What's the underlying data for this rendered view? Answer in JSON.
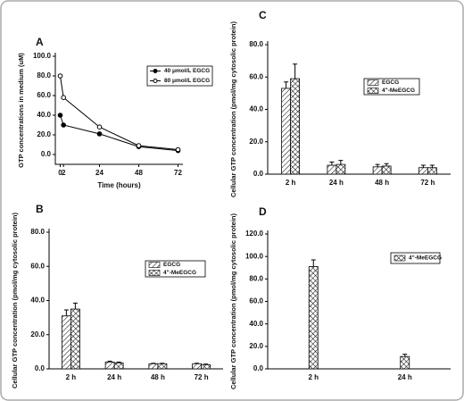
{
  "chart_data": [
    {
      "type": "line",
      "title": "A",
      "ylabel": "GTP concentrations in medium (uM)",
      "xlabel": "Time (hours)",
      "x": [
        0,
        2,
        24,
        48,
        72
      ],
      "series": [
        {
          "name": "40 μmol/L EGCG",
          "color": "#000000",
          "marker": "filled",
          "values": [
            40,
            30,
            21,
            8,
            4
          ]
        },
        {
          "name": "80 μmol/L EGCG",
          "color": "#000000",
          "marker": "open",
          "values": [
            80,
            58,
            28,
            9,
            5
          ]
        }
      ],
      "xlim": [
        -3,
        75
      ],
      "xticks": [
        0,
        2,
        24,
        48,
        72
      ],
      "ylim": [
        -10,
        100
      ],
      "yticks": [
        {
          "value": 0,
          "label": "0.0"
        },
        {
          "value": 20,
          "label": "20.0"
        },
        {
          "value": 40,
          "label": "40.0"
        },
        {
          "value": 60,
          "label": "60.0"
        },
        {
          "value": 80,
          "label": "80.0"
        },
        {
          "value": 100,
          "label": "100.0"
        }
      ]
    },
    {
      "type": "bar",
      "title": "C",
      "ylabel": "Cellular GTP concentration (pmol/mg cytosolic protein)",
      "categories": [
        "2 h",
        "24 h",
        "48 h",
        "72 h"
      ],
      "series": [
        {
          "name": "EGCG",
          "color": "#000000",
          "hatch": "diagonal",
          "values": [
            53,
            5.5,
            4.5,
            4
          ],
          "errors": [
            4,
            2,
            1.5,
            1.5
          ]
        },
        {
          "name": "4\"-MeEGCG",
          "color": "#000000",
          "hatch": "cross",
          "values": [
            59,
            6,
            5,
            4
          ],
          "errors": [
            9,
            2.5,
            1.5,
            1.5
          ]
        }
      ],
      "ylim": [
        0,
        80
      ],
      "yticks": [
        {
          "value": 0,
          "label": "0.0"
        },
        {
          "value": 20,
          "label": "20.0"
        },
        {
          "value": 40,
          "label": "40.0"
        },
        {
          "value": 60,
          "label": "60.0"
        },
        {
          "value": 80,
          "label": "80.0"
        }
      ]
    },
    {
      "type": "bar",
      "title": "B",
      "ylabel": "Cellular GTP concentration (pmol/mg cytosolic protein)",
      "categories": [
        "2 h",
        "24 h",
        "48 h",
        "72 h"
      ],
      "series": [
        {
          "name": "EGCG",
          "color": "#000000",
          "hatch": "diagonal",
          "values": [
            31,
            4,
            3,
            3
          ],
          "errors": [
            3.5,
            0.5,
            0.3,
            0.3
          ]
        },
        {
          "name": "4\"-MeEGCG",
          "color": "#000000",
          "hatch": "cross",
          "values": [
            35,
            3.5,
            3,
            2.5
          ],
          "errors": [
            3.5,
            0.5,
            0.3,
            0.3
          ]
        }
      ],
      "ylim": [
        0,
        80
      ],
      "yticks": [
        {
          "value": 0,
          "label": "0.0"
        },
        {
          "value": 20,
          "label": "20.0"
        },
        {
          "value": 40,
          "label": "40.0"
        },
        {
          "value": 60,
          "label": "60.0"
        },
        {
          "value": 80,
          "label": "80.0"
        }
      ]
    },
    {
      "type": "bar",
      "title": "D",
      "ylabel": "Cellular GTP concentration (pmol/mg cytosolic protein)",
      "categories": [
        "2 h",
        "24 h"
      ],
      "series": [
        {
          "name": "4\"-MeEGCG",
          "color": "#000000",
          "hatch": "cross",
          "values": [
            91,
            11
          ],
          "errors": [
            6,
            2
          ]
        }
      ],
      "ylim": [
        0,
        120
      ],
      "yticks": [
        {
          "value": 0,
          "label": "0.0"
        },
        {
          "value": 20,
          "label": "20.0"
        },
        {
          "value": 40,
          "label": "40.0"
        },
        {
          "value": 60,
          "label": "60.0"
        },
        {
          "value": 80,
          "label": "80.0"
        },
        {
          "value": 100,
          "label": "100.0"
        },
        {
          "value": 120,
          "label": "120.0"
        }
      ]
    }
  ]
}
